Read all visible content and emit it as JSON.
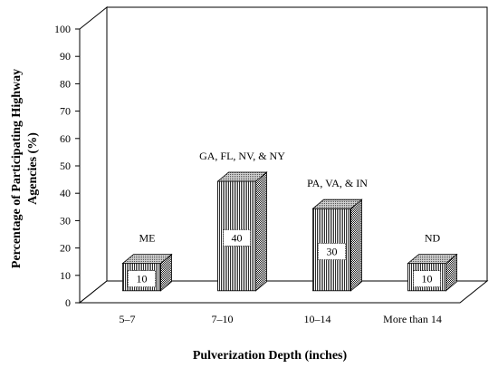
{
  "chart_data": {
    "type": "bar",
    "categories": [
      "5–7",
      "7–10",
      "10–14",
      "More than 14"
    ],
    "values": [
      10,
      40,
      30,
      10
    ],
    "annotations": [
      "ME",
      "GA, FL, NV, & NY",
      "PA, VA, & IN",
      "ND"
    ],
    "value_labels": [
      "10",
      "40",
      "30",
      "10"
    ],
    "xlabel": "Pulverization Depth (inches)",
    "ylabel_lines": [
      "Percentage of Participating Highway",
      "Agencies (%)"
    ],
    "ylim": [
      0,
      100
    ],
    "yticks": [
      "0",
      "10",
      "20",
      "30",
      "40",
      "50",
      "60",
      "70",
      "80",
      "90",
      "100"
    ],
    "grid": false,
    "style": "3d-bar"
  }
}
